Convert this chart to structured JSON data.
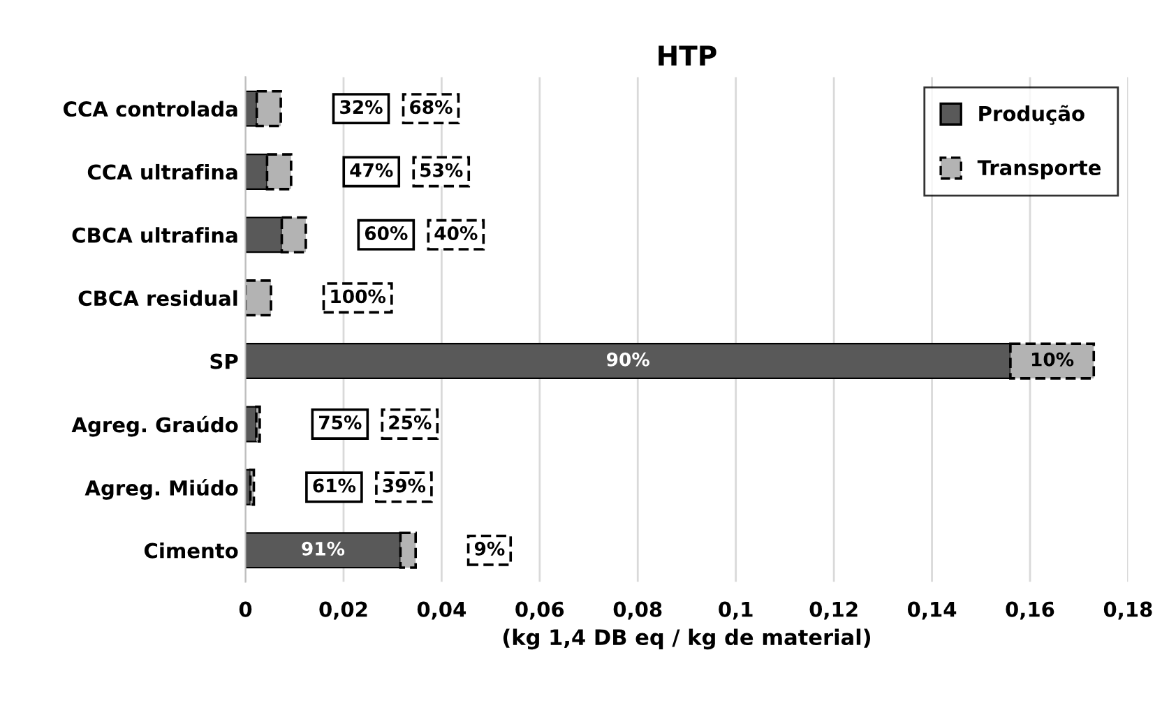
{
  "chart_data": {
    "type": "bar",
    "title": "HTP",
    "xlabel": "(kg 1,4 DB eq / kg de material)",
    "orientation": "horizontal",
    "stacked": true,
    "categories": [
      "CCA controlada",
      "CCA ultrafina",
      "CBCA ultrafina",
      "CBCA residual",
      "SP",
      "Agreg. Graúdo",
      "Agreg. Miúdo",
      "Cimento"
    ],
    "series": [
      {
        "name": "Produção",
        "color": "#595959",
        "line_style": "solid",
        "values": [
          0.0023,
          0.0044,
          0.0074,
          0,
          0.156,
          0.0022,
          0.001,
          0.0316
        ]
      },
      {
        "name": "Transporte",
        "color": "#b3b3b3",
        "line_style": "dashed",
        "values": [
          0.0049,
          0.0049,
          0.0049,
          0.0052,
          0.017,
          0.0007,
          0.0007,
          0.0031
        ]
      }
    ],
    "annotations": [
      "32%",
      "68%",
      "47%",
      "53%",
      "60%",
      "40%",
      "100%",
      "90%",
      "10%",
      "75%",
      "25%",
      "61%",
      "39%",
      "91%",
      "9%"
    ],
    "xlim": [
      0,
      0.18
    ],
    "xticks": [
      0,
      {
        "value": 0.02,
        "label": "0,02"
      },
      {
        "value": 0.04,
        "label": "0,04"
      },
      {
        "value": 0.06,
        "label": "0,06"
      },
      {
        "value": 0.08,
        "label": "0,08"
      },
      {
        "value": 0.1,
        "label": "0,1"
      },
      {
        "value": 0.12,
        "label": "0,12"
      },
      {
        "value": 0.14,
        "label": "0,14"
      },
      {
        "value": 0.16,
        "label": "0,16"
      },
      {
        "value": 0.18,
        "label": "0,18"
      }
    ],
    "grid": "x",
    "legend": "top right"
  }
}
